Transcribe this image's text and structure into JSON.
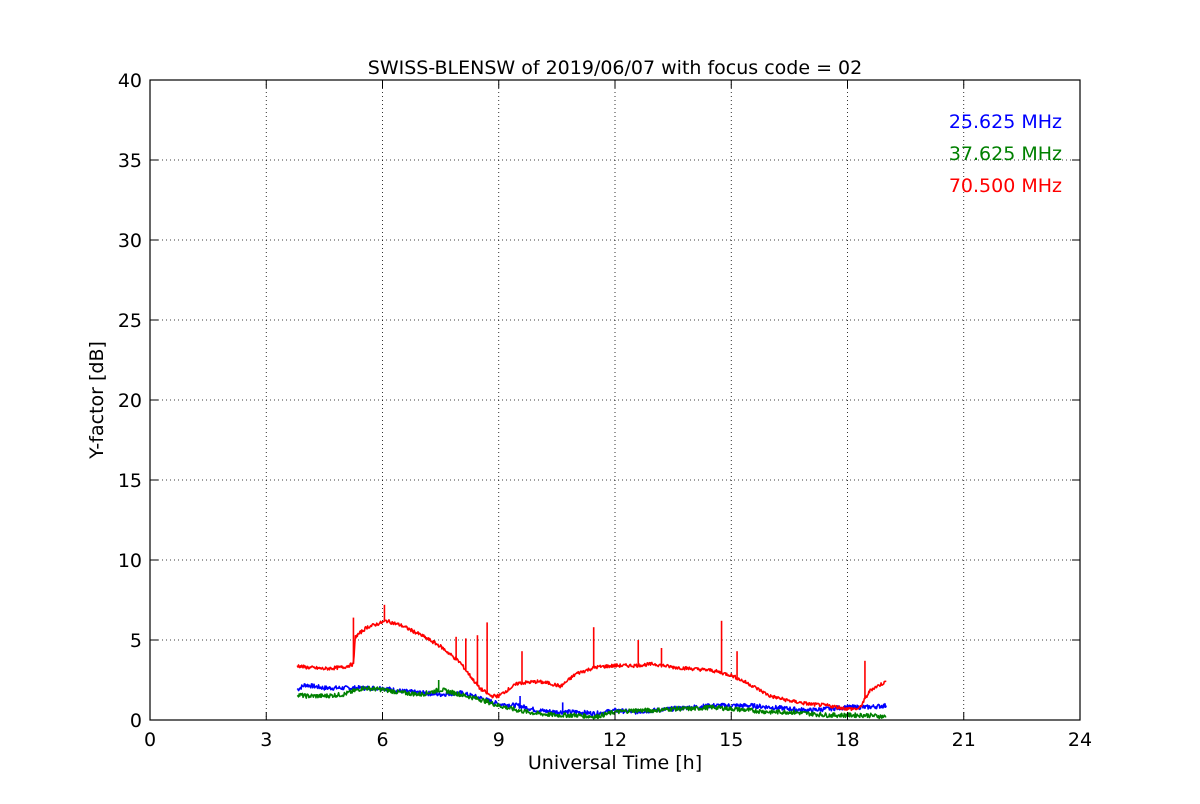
{
  "chart_data": {
    "type": "line",
    "title": "SWISS-BLENSW of 2019/06/07 with focus code = 02",
    "xlabel": "Universal Time [h]",
    "ylabel": "Y-factor [dB]",
    "xlim": [
      0,
      24
    ],
    "ylim": [
      0,
      40
    ],
    "xticks": [
      0,
      3,
      6,
      9,
      12,
      15,
      18,
      21,
      24
    ],
    "yticks": [
      0,
      5,
      10,
      15,
      20,
      25,
      30,
      35,
      40
    ],
    "grid": true,
    "legend_position": "top-right",
    "series": [
      {
        "name": "25.625 MHz",
        "color": "#0000ff",
        "x": [
          3.8,
          4.0,
          4.5,
          5.0,
          5.5,
          6.0,
          6.5,
          7.0,
          7.5,
          8.0,
          8.5,
          9.0,
          9.5,
          10.0,
          10.5,
          11.0,
          11.5,
          12.0,
          12.5,
          13.0,
          13.5,
          14.0,
          14.5,
          15.0,
          15.5,
          16.0,
          16.5,
          17.0,
          17.5,
          18.0,
          18.5,
          19.0
        ],
        "y": [
          1.9,
          2.2,
          2.0,
          2.0,
          2.0,
          2.0,
          1.8,
          1.7,
          1.6,
          1.7,
          1.4,
          1.0,
          0.9,
          0.6,
          0.5,
          0.5,
          0.4,
          0.6,
          0.5,
          0.6,
          0.7,
          0.8,
          0.9,
          0.9,
          0.9,
          0.8,
          0.7,
          0.6,
          0.7,
          0.8,
          0.8,
          0.9
        ]
      },
      {
        "name": "37.625 MHz",
        "color": "#008000",
        "x": [
          3.8,
          4.0,
          4.5,
          5.0,
          5.5,
          6.0,
          6.5,
          7.0,
          7.5,
          8.0,
          8.5,
          9.0,
          9.5,
          10.0,
          10.5,
          11.0,
          11.5,
          12.0,
          12.5,
          13.0,
          13.5,
          14.0,
          14.5,
          15.0,
          15.5,
          16.0,
          16.5,
          17.0,
          17.5,
          18.0,
          18.5,
          19.0
        ],
        "y": [
          1.6,
          1.5,
          1.5,
          1.6,
          2.0,
          1.9,
          1.7,
          1.6,
          1.9,
          1.6,
          1.3,
          0.9,
          0.6,
          0.4,
          0.3,
          0.3,
          0.2,
          0.5,
          0.6,
          0.6,
          0.7,
          0.7,
          0.8,
          0.7,
          0.6,
          0.5,
          0.5,
          0.4,
          0.3,
          0.3,
          0.3,
          0.2
        ]
      },
      {
        "name": "70.500 MHz",
        "color": "#ff0000",
        "x": [
          3.8,
          4.0,
          4.5,
          5.0,
          5.25,
          5.3,
          5.6,
          6.0,
          6.1,
          6.5,
          7.0,
          7.5,
          8.0,
          8.5,
          8.8,
          9.0,
          9.3,
          9.5,
          10.0,
          10.3,
          10.6,
          11.0,
          11.5,
          12.0,
          12.5,
          13.0,
          13.5,
          14.0,
          14.5,
          15.0,
          15.5,
          16.0,
          16.5,
          17.0,
          17.5,
          18.0,
          18.3,
          18.5,
          18.6,
          19.0
        ],
        "y": [
          3.4,
          3.3,
          3.2,
          3.3,
          3.5,
          5.2,
          5.8,
          6.1,
          6.2,
          5.9,
          5.3,
          4.6,
          3.6,
          2.0,
          1.5,
          1.5,
          2.0,
          2.3,
          2.4,
          2.3,
          2.1,
          2.9,
          3.3,
          3.4,
          3.4,
          3.5,
          3.3,
          3.2,
          3.1,
          2.8,
          2.2,
          1.5,
          1.2,
          1.0,
          0.9,
          0.7,
          0.7,
          1.5,
          1.9,
          2.4
        ]
      }
    ],
    "spikes": [
      {
        "series": 2,
        "x": 5.25,
        "y": 6.4
      },
      {
        "series": 2,
        "x": 6.05,
        "y": 7.2
      },
      {
        "series": 2,
        "x": 7.9,
        "y": 5.2
      },
      {
        "series": 2,
        "x": 8.15,
        "y": 5.1
      },
      {
        "series": 2,
        "x": 8.45,
        "y": 5.3
      },
      {
        "series": 2,
        "x": 8.7,
        "y": 6.1
      },
      {
        "series": 2,
        "x": 9.6,
        "y": 4.3
      },
      {
        "series": 2,
        "x": 11.45,
        "y": 5.8
      },
      {
        "series": 2,
        "x": 12.6,
        "y": 5.0
      },
      {
        "series": 2,
        "x": 13.2,
        "y": 4.5
      },
      {
        "series": 2,
        "x": 14.75,
        "y": 6.2
      },
      {
        "series": 2,
        "x": 15.15,
        "y": 4.3
      },
      {
        "series": 2,
        "x": 18.45,
        "y": 3.7
      },
      {
        "series": 0,
        "x": 9.55,
        "y": 1.5
      },
      {
        "series": 0,
        "x": 10.65,
        "y": 1.1
      },
      {
        "series": 1,
        "x": 7.45,
        "y": 2.5
      }
    ]
  }
}
